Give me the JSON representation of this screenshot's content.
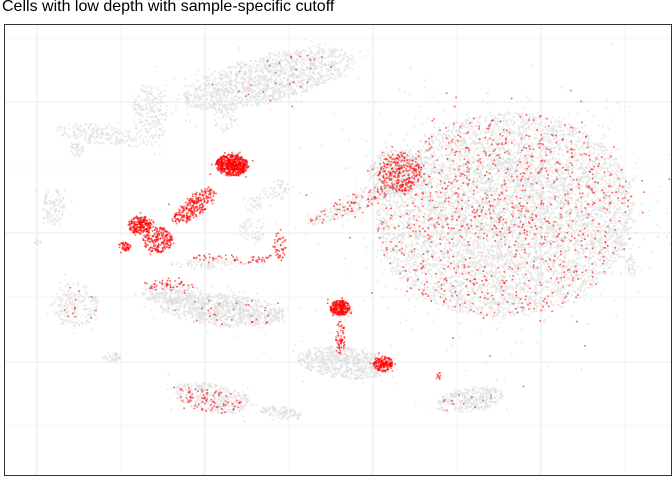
{
  "chart_data": {
    "type": "scatter",
    "title": "Cells with low depth with sample-specific cutoff",
    "xlabel": "",
    "ylabel": "",
    "grid": true,
    "legend": "none",
    "axis_ticks_shown": false,
    "colors": {
      "background_cells": "#dcdcdc",
      "low_depth_cells": "#ff0000",
      "grid": "#ebebeb",
      "panel_border": "#333333"
    },
    "series": [
      {
        "role": "all cells",
        "clusters": [
          {
            "x": 268,
            "y": 79,
            "rx": 88,
            "ry": 24,
            "n": 1400,
            "rot": -14
          },
          {
            "x": 150,
            "y": 115,
            "rx": 18,
            "ry": 30,
            "n": 220,
            "rot": 0
          },
          {
            "x": 100,
            "y": 135,
            "rx": 45,
            "ry": 10,
            "n": 200,
            "rot": 8
          },
          {
            "x": 77,
            "y": 150,
            "rx": 7,
            "ry": 7,
            "n": 40,
            "rot": 0
          },
          {
            "x": 225,
            "y": 112,
            "rx": 12,
            "ry": 22,
            "n": 80,
            "rot": 0
          },
          {
            "x": 505,
            "y": 215,
            "rx": 130,
            "ry": 102,
            "n": 7000,
            "rot": -6
          },
          {
            "x": 398,
            "y": 172,
            "rx": 30,
            "ry": 22,
            "n": 500,
            "rot": 0
          },
          {
            "x": 350,
            "y": 205,
            "rx": 48,
            "ry": 9,
            "n": 220,
            "rot": -22
          },
          {
            "x": 632,
            "y": 265,
            "rx": 6,
            "ry": 12,
            "n": 40,
            "rot": 0
          },
          {
            "x": 53,
            "y": 207,
            "rx": 12,
            "ry": 18,
            "n": 110,
            "rot": 0
          },
          {
            "x": 270,
            "y": 195,
            "rx": 30,
            "ry": 10,
            "n": 90,
            "rot": -30
          },
          {
            "x": 253,
            "y": 230,
            "rx": 14,
            "ry": 12,
            "n": 60,
            "rot": 0
          },
          {
            "x": 75,
            "y": 305,
            "rx": 24,
            "ry": 22,
            "n": 220,
            "rot": 0
          },
          {
            "x": 223,
            "y": 310,
            "rx": 62,
            "ry": 16,
            "n": 900,
            "rot": 4
          },
          {
            "x": 168,
            "y": 293,
            "rx": 26,
            "ry": 10,
            "n": 220,
            "rot": 0
          },
          {
            "x": 345,
            "y": 363,
            "rx": 48,
            "ry": 16,
            "n": 650,
            "rot": 6
          },
          {
            "x": 212,
            "y": 398,
            "rx": 38,
            "ry": 14,
            "n": 420,
            "rot": 10
          },
          {
            "x": 282,
            "y": 413,
            "rx": 22,
            "ry": 6,
            "n": 110,
            "rot": 8
          },
          {
            "x": 470,
            "y": 400,
            "rx": 34,
            "ry": 12,
            "n": 330,
            "rot": -10
          },
          {
            "x": 112,
            "y": 357,
            "rx": 9,
            "ry": 5,
            "n": 40,
            "rot": 0
          },
          {
            "x": 342,
            "y": 312,
            "rx": 10,
            "ry": 8,
            "n": 60,
            "rot": 0
          },
          {
            "x": 210,
            "y": 265,
            "rx": 40,
            "ry": 5,
            "n": 90,
            "rot": 0
          },
          {
            "x": 37,
            "y": 243,
            "rx": 3,
            "ry": 4,
            "n": 12,
            "rot": 0
          }
        ]
      },
      {
        "role": "low-depth cells",
        "clusters": [
          {
            "x": 232,
            "y": 165,
            "rx": 16,
            "ry": 11,
            "n": 600,
            "rot": 0
          },
          {
            "x": 195,
            "y": 205,
            "rx": 26,
            "ry": 10,
            "n": 260,
            "rot": -40
          },
          {
            "x": 140,
            "y": 225,
            "rx": 12,
            "ry": 9,
            "n": 220,
            "rot": 0
          },
          {
            "x": 158,
            "y": 240,
            "rx": 15,
            "ry": 13,
            "n": 220,
            "rot": 0
          },
          {
            "x": 125,
            "y": 247,
            "rx": 6,
            "ry": 5,
            "n": 50,
            "rot": 0
          },
          {
            "x": 340,
            "y": 308,
            "rx": 10,
            "ry": 8,
            "n": 260,
            "rot": 0
          },
          {
            "x": 383,
            "y": 364,
            "rx": 10,
            "ry": 8,
            "n": 180,
            "rot": 0
          },
          {
            "x": 400,
            "y": 172,
            "rx": 22,
            "ry": 20,
            "n": 260,
            "rot": 0
          },
          {
            "x": 505,
            "y": 215,
            "rx": 130,
            "ry": 102,
            "n": 900,
            "rot": -6
          },
          {
            "x": 350,
            "y": 205,
            "rx": 48,
            "ry": 9,
            "n": 70,
            "rot": -22
          },
          {
            "x": 340,
            "y": 338,
            "rx": 5,
            "ry": 18,
            "n": 60,
            "rot": 0
          },
          {
            "x": 240,
            "y": 258,
            "rx": 50,
            "ry": 5,
            "n": 60,
            "rot": 0
          },
          {
            "x": 210,
            "y": 400,
            "rx": 35,
            "ry": 12,
            "n": 80,
            "rot": 10
          },
          {
            "x": 168,
            "y": 285,
            "rx": 24,
            "ry": 8,
            "n": 45,
            "rot": 0
          },
          {
            "x": 223,
            "y": 310,
            "rx": 60,
            "ry": 15,
            "n": 30,
            "rot": 4
          },
          {
            "x": 268,
            "y": 80,
            "rx": 85,
            "ry": 22,
            "n": 28,
            "rot": -14
          },
          {
            "x": 75,
            "y": 305,
            "rx": 22,
            "ry": 20,
            "n": 12,
            "rot": 0
          },
          {
            "x": 470,
            "y": 400,
            "rx": 32,
            "ry": 11,
            "n": 12,
            "rot": -10
          },
          {
            "x": 280,
            "y": 245,
            "rx": 6,
            "ry": 16,
            "n": 40,
            "rot": 0
          },
          {
            "x": 438,
            "y": 377,
            "rx": 3,
            "ry": 6,
            "n": 10,
            "rot": 0
          }
        ]
      }
    ]
  }
}
